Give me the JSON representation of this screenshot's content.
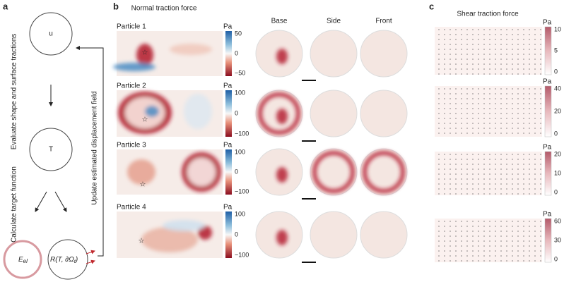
{
  "panel_a": {
    "label": "a",
    "node_u": "u",
    "node_t": "T",
    "step_1": "Evaluate shape and surface tractions",
    "step_2": "Calculate target function",
    "energy": "E",
    "energy_sub": "el",
    "residual": "R(T, ∂Ω",
    "residual_sub": "t",
    "residual_end": ")",
    "loop": "Update estimated displacement field"
  },
  "panel_b": {
    "label": "b",
    "title": "Normal traction force",
    "views": [
      "Base",
      "Side",
      "Front"
    ],
    "particles": [
      {
        "name": "Particle 1",
        "unit": "Pa",
        "ticks": [
          "50",
          "0",
          "−50"
        ]
      },
      {
        "name": "Particle 2",
        "unit": "Pa",
        "ticks": [
          "100",
          "0",
          "−100"
        ]
      },
      {
        "name": "Particle 3",
        "unit": "Pa",
        "ticks": [
          "100",
          "0",
          "−100"
        ]
      },
      {
        "name": "Particle 4",
        "unit": "Pa",
        "ticks": [
          "100",
          "0",
          "−100"
        ]
      }
    ]
  },
  "panel_c": {
    "label": "c",
    "title": "Shear traction force",
    "colorbars": [
      {
        "unit": "Pa",
        "ticks": [
          "10",
          "5",
          "0"
        ]
      },
      {
        "unit": "Pa",
        "ticks": [
          "40",
          "20",
          "0"
        ]
      },
      {
        "unit": "Pa",
        "ticks": [
          "20",
          "10",
          "0"
        ]
      },
      {
        "unit": "Pa",
        "ticks": [
          "60",
          "30",
          "0"
        ]
      }
    ]
  }
}
